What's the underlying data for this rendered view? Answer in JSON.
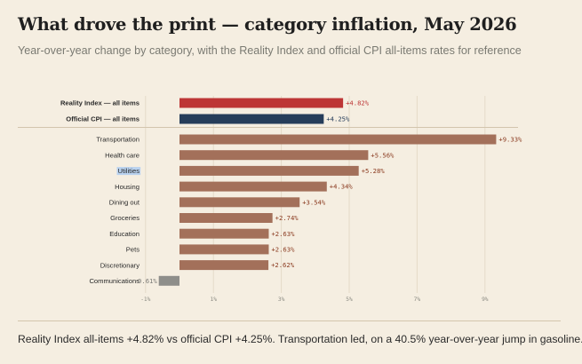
{
  "title": "What drove the print — category inflation, May 2026",
  "subtitle": "Year-over-year change by category, with the Reality Index and official CPI all-items rates for reference",
  "footer_note": "Reality Index all-items +4.82% vs official CPI +4.25%. Transportation led, on a 40.5% year-over-year jump in gasoline.",
  "colors": {
    "reality_index": "#bd3535",
    "official_cpi": "#263d5a",
    "category": "#a3705a",
    "negative": "#8e8e8a",
    "grid": "#e4dac8",
    "highlight": "#b9d2ef"
  },
  "chart_data": {
    "type": "bar",
    "orientation": "horizontal",
    "reference_bars": [
      {
        "label": "Reality Index — all items",
        "value": 4.82,
        "value_label": "+4.82%",
        "color": "#bd3535"
      },
      {
        "label": "Official CPI — all items",
        "value": 4.25,
        "value_label": "+4.25%",
        "color": "#263d5a"
      }
    ],
    "categories": [
      "Transportation",
      "Health care",
      "Utilities",
      "Housing",
      "Dining out",
      "Groceries",
      "Education",
      "Pets",
      "Discretionary",
      "Communications"
    ],
    "values": [
      9.33,
      5.56,
      5.28,
      4.34,
      3.54,
      2.74,
      2.63,
      2.63,
      2.62,
      -0.61
    ],
    "value_labels": [
      "+9.33%",
      "+5.56%",
      "+5.28%",
      "+4.34%",
      "+3.54%",
      "+2.74%",
      "+2.63%",
      "+2.63%",
      "+2.62%",
      "-0.61%"
    ],
    "highlighted_category": "Utilities",
    "x_ticks": [
      -1,
      1,
      3,
      5,
      7,
      9
    ],
    "x_tick_labels": [
      "-1%",
      "1%",
      "3%",
      "5%",
      "7%",
      "9%"
    ],
    "xlim": [
      -1.5,
      10.5
    ],
    "grid": true
  }
}
